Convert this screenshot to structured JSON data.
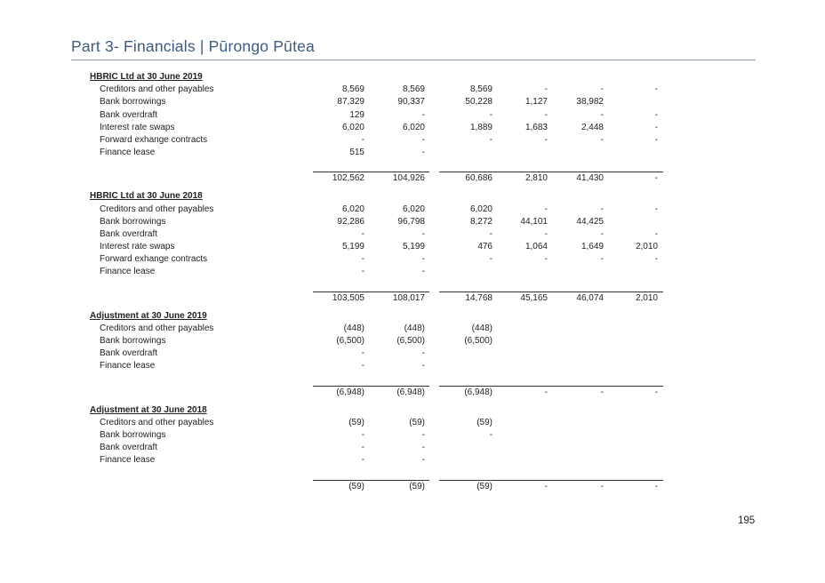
{
  "header": {
    "title": "Part 3- Financials | Pūrongo Pūtea"
  },
  "sections": [
    {
      "heading": "HBRIC Ltd at 30 June 2019",
      "rows": [
        {
          "label": "Creditors and other payables",
          "values": [
            "8,569",
            "8,569",
            "8,569",
            "-",
            "-",
            "-"
          ]
        },
        {
          "label": "Bank borrowings",
          "values": [
            "87,329",
            "90,337",
            "50,228",
            "1,127",
            "38,982",
            ""
          ]
        },
        {
          "label": "Bank overdraft",
          "values": [
            "129",
            "-",
            "-",
            "-",
            "-",
            "-"
          ]
        },
        {
          "label": "Interest rate swaps",
          "values": [
            "6,020",
            "6,020",
            "1,889",
            "1,683",
            "2,448",
            "-"
          ]
        },
        {
          "label": "Forward exhange contracts",
          "values": [
            "-",
            "-",
            "-",
            "-",
            "-",
            "-"
          ]
        },
        {
          "label": "Finance lease",
          "values": [
            "515",
            "-",
            "",
            "",
            "",
            ""
          ]
        }
      ],
      "total": [
        "102,562",
        "104,926",
        "60,686",
        "2,810",
        "41,430",
        "-"
      ]
    },
    {
      "heading": "HBRIC Ltd at 30 June 2018",
      "rows": [
        {
          "label": "Creditors and other payables",
          "values": [
            "6,020",
            "6,020",
            "6,020",
            "-",
            "-",
            "-"
          ]
        },
        {
          "label": "Bank borrowings",
          "values": [
            "92,286",
            "96,798",
            "8,272",
            "44,101",
            "44,425",
            ""
          ]
        },
        {
          "label": "Bank overdraft",
          "values": [
            "-",
            "-",
            "-",
            "-",
            "-",
            "-"
          ]
        },
        {
          "label": "Interest rate swaps",
          "values": [
            "5,199",
            "5,199",
            "476",
            "1,064",
            "1,649",
            "2,010"
          ]
        },
        {
          "label": "Forward exhange contracts",
          "values": [
            "-",
            "-",
            "-",
            "-",
            "-",
            "-"
          ]
        },
        {
          "label": "Finance lease",
          "values": [
            "-",
            "-",
            "",
            "",
            "",
            ""
          ]
        }
      ],
      "total": [
        "103,505",
        "108,017",
        "14,768",
        "45,165",
        "46,074",
        "2,010"
      ]
    },
    {
      "heading": "Adjustment at 30 June 2019",
      "rows": [
        {
          "label": "Creditors and other payables",
          "values": [
            "(448)",
            "(448)",
            "(448)",
            "",
            "",
            ""
          ]
        },
        {
          "label": "Bank borrowings",
          "values": [
            "(6,500)",
            "(6,500)",
            "(6,500)",
            "",
            "",
            ""
          ]
        },
        {
          "label": "Bank overdraft",
          "values": [
            "-",
            "-",
            "",
            "",
            "",
            ""
          ]
        },
        {
          "label": "Finance lease",
          "values": [
            "-",
            "-",
            "",
            "",
            "",
            ""
          ]
        }
      ],
      "total": [
        "(6,948)",
        "(6,948)",
        "(6,948)",
        "-",
        "-",
        "-"
      ]
    },
    {
      "heading": "Adjustment at 30 June 2018",
      "rows": [
        {
          "label": "Creditors and other payables",
          "values": [
            "(59)",
            "(59)",
            "(59)",
            "",
            "",
            ""
          ]
        },
        {
          "label": "Bank borrowings",
          "values": [
            "-",
            "-",
            "-",
            "",
            "",
            ""
          ]
        },
        {
          "label": "Bank overdraft",
          "values": [
            "-",
            "-",
            "",
            "",
            "",
            ""
          ]
        },
        {
          "label": "Finance lease",
          "values": [
            "-",
            "-",
            "",
            "",
            "",
            ""
          ]
        }
      ],
      "total": [
        "(59)",
        "(59)",
        "(59)",
        "-",
        "-",
        "-"
      ]
    }
  ],
  "footer": {
    "page_number": "195"
  }
}
